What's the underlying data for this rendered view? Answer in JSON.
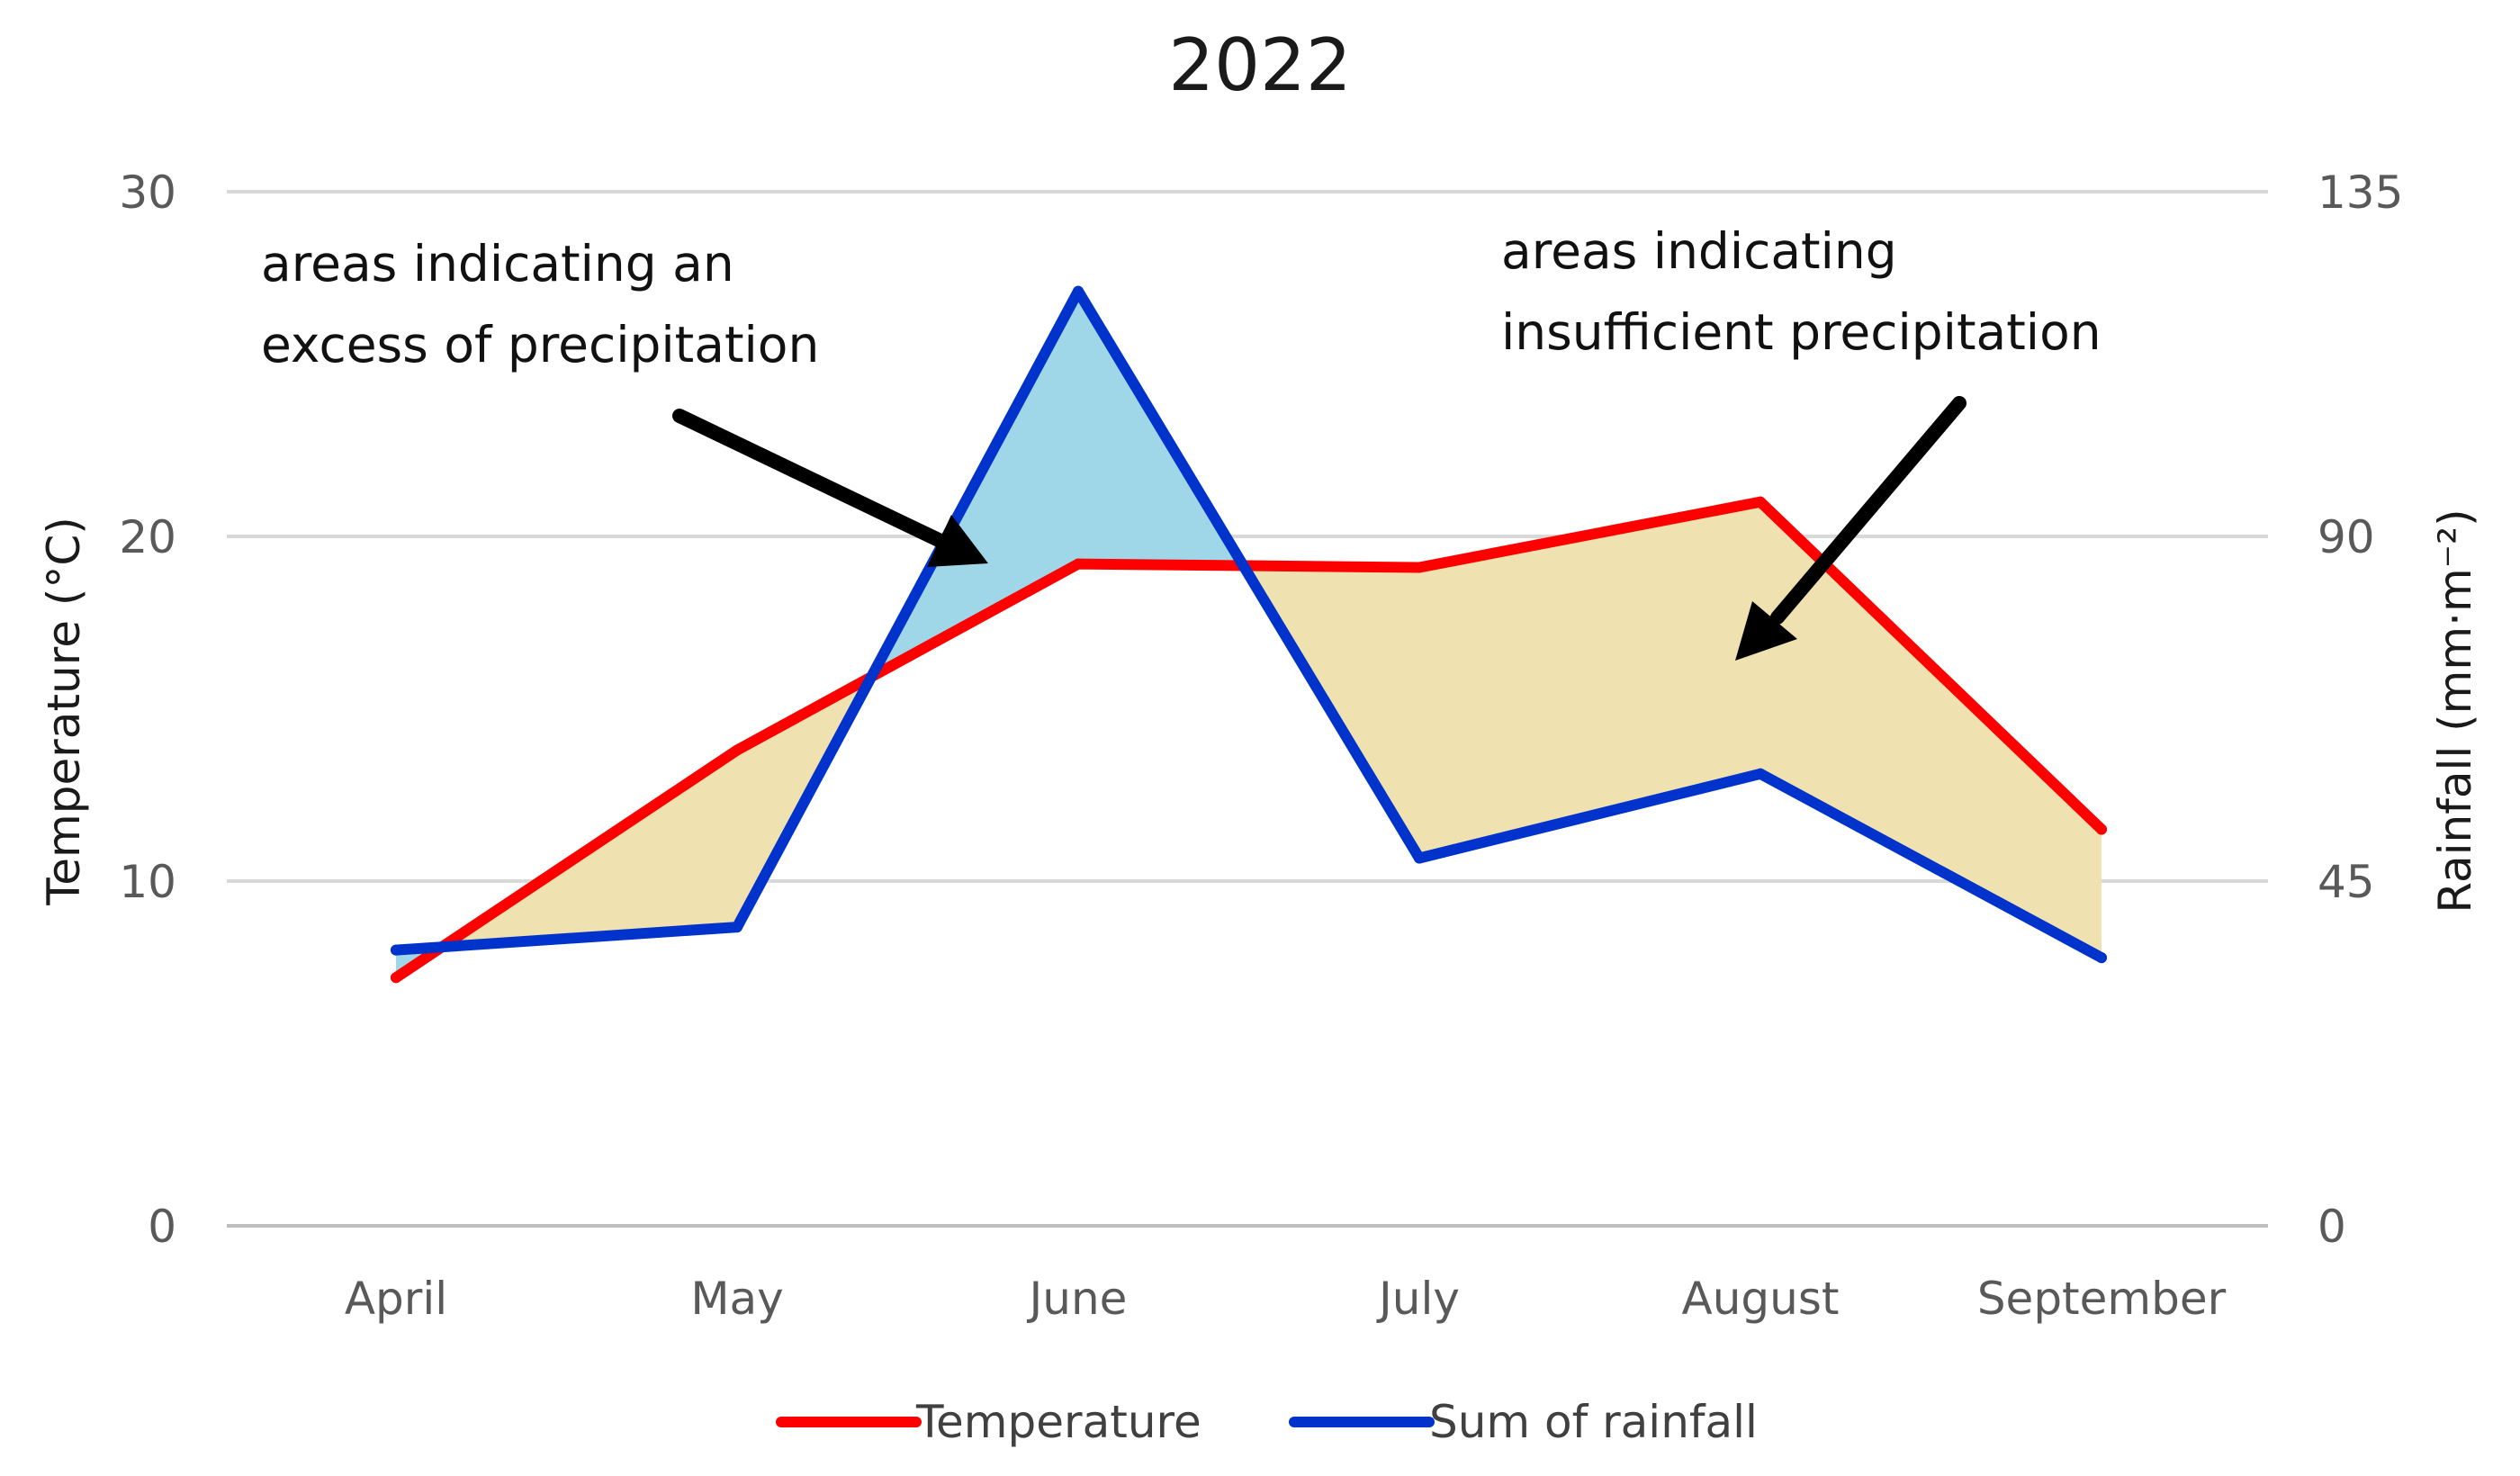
{
  "chart_data": {
    "type": "line",
    "title": "2022",
    "categories": [
      "April",
      "May",
      "June",
      "July",
      "August",
      "September"
    ],
    "series": [
      {
        "name": "Temperature",
        "axis": "left",
        "color": "#ff0000",
        "values": [
          7.2,
          13.8,
          19.2,
          19.1,
          21.0,
          11.5
        ]
      },
      {
        "name": "Sum of rainfall",
        "axis": "right",
        "color": "#0033cc",
        "values": [
          36,
          39,
          122,
          48,
          59,
          35
        ]
      }
    ],
    "ylabel": "Temperature (°C)",
    "y2label": "Rainfall (mm·m⁻²)",
    "ylim": [
      0,
      30
    ],
    "y2lim": [
      0,
      135
    ],
    "yticks": [
      "0",
      "10",
      "20",
      "30"
    ],
    "y2ticks": [
      "0",
      "45",
      "90",
      "135"
    ],
    "grid": true,
    "legend_position": "bottom",
    "excess_fill_color": "#9fd6e8",
    "deficit_fill_color": "#efe2b0",
    "annotations": [
      {
        "id": "excess",
        "lines": [
          "areas indicating an",
          "excess of precipitation"
        ]
      },
      {
        "id": "deficit",
        "lines": [
          "areas indicating",
          "insufficient precipitation"
        ]
      }
    ]
  }
}
